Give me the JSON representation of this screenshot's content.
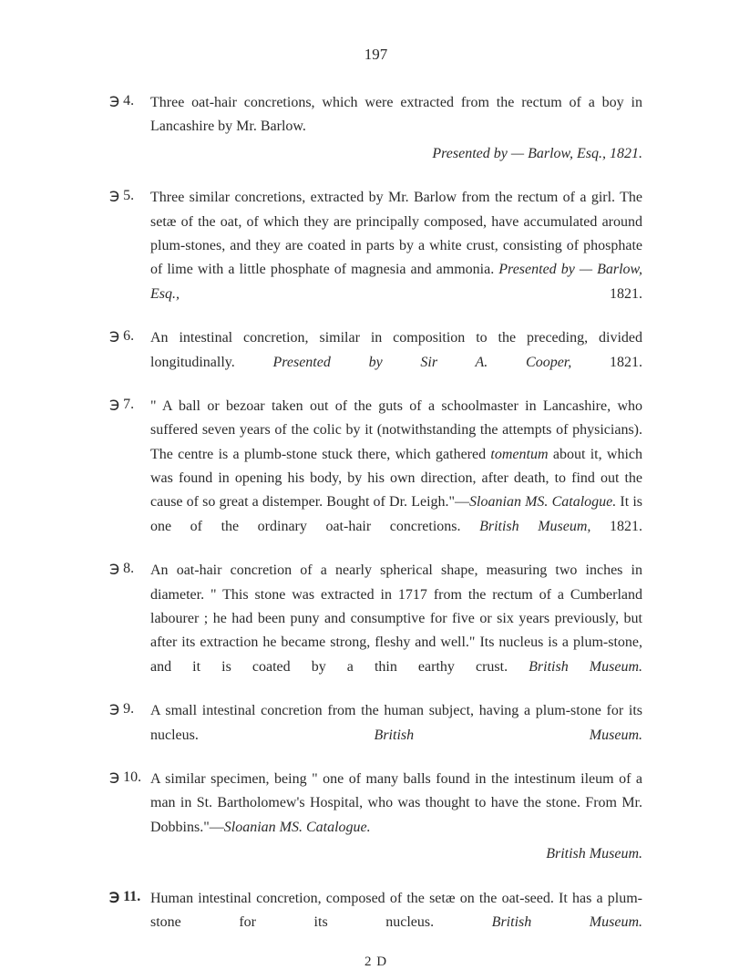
{
  "page_number": "197",
  "entries": [
    {
      "marker": "℈ 4.",
      "bold": false,
      "text": "Three oat-hair concretions, which were extracted from the rectum of a boy in Lancashire by Mr. Barlow.",
      "attribution": "Presented by — Barlow, Esq., 1821."
    },
    {
      "marker": "℈ 5.",
      "bold": false,
      "text": "Three similar concretions, extracted by Mr. Barlow from the rectum of a girl. The setæ of the oat, of which they are principally composed, have accumulated around plum-stones, and they are coated in parts by a white crust, consisting of phosphate of lime with a little phosphate of magnesia and ammonia.",
      "attribution_inline_prefix": "Presented by — Barlow, Esq.,",
      "attribution_inline_suffix": " 1821."
    },
    {
      "marker": "℈ 6.",
      "bold": false,
      "text": "An intestinal concretion, similar in composition to the preceding, divided longitudinally.",
      "attribution_inline_prefix": "Presented by Sir A. Cooper,",
      "attribution_inline_suffix": " 1821."
    },
    {
      "marker": "℈ 7.",
      "bold": false,
      "text_parts": [
        {
          "text": "\" A ball or bezoar taken out of the guts of a schoolmaster in Lancashire, who suffered seven years of the colic by it (notwithstanding the attempts of physicians). The centre is a plumb-stone stuck there, which gathered ",
          "italic": false
        },
        {
          "text": "tomentum",
          "italic": true
        },
        {
          "text": " about it, which was found in opening his body, by his own direction, after death, to find out the cause of so great a distemper. Bought of Dr. Leigh.\"—",
          "italic": false
        },
        {
          "text": "Sloanian MS. Catalogue.",
          "italic": true
        },
        {
          "text": "   It is one of the ordinary oat-hair concretions.",
          "italic": false
        }
      ],
      "attribution_inline_prefix": "British Museum,",
      "attribution_inline_suffix": " 1821."
    },
    {
      "marker": "℈ 8.",
      "bold": false,
      "text": "An oat-hair concretion of a nearly spherical shape, measuring two inches in diameter. \" This stone was extracted in 1717 from the rectum of a Cumberland labourer ; he had been puny and consumptive for five or six years previously, but after its extraction he became strong, fleshy and well.\" Its nucleus is a plum-stone, and it is coated by a thin earthy crust.",
      "attribution_right": "British Museum."
    },
    {
      "marker": "℈ 9.",
      "bold": false,
      "text": "A small intestinal concretion from the human subject, having a plum-stone for its nucleus.",
      "attribution_right": "British Museum."
    },
    {
      "marker": "℈ 10.",
      "bold": false,
      "text_parts": [
        {
          "text": "A similar specimen, being \" one of many balls found in the intestinum ileum of a man in St. Bartholomew's Hospital, who was thought to have the stone. From Mr. Dobbins.\"—",
          "italic": false
        },
        {
          "text": "Sloanian MS. Catalogue.",
          "italic": true
        }
      ],
      "attribution_below": "British Museum."
    },
    {
      "marker": "℈ 11.",
      "bold": true,
      "text": "Human intestinal concretion, composed of the setæ on the oat-seed. It has a plum-stone for its nucleus.",
      "attribution_right": "British Museum."
    }
  ],
  "footer": "2 D"
}
